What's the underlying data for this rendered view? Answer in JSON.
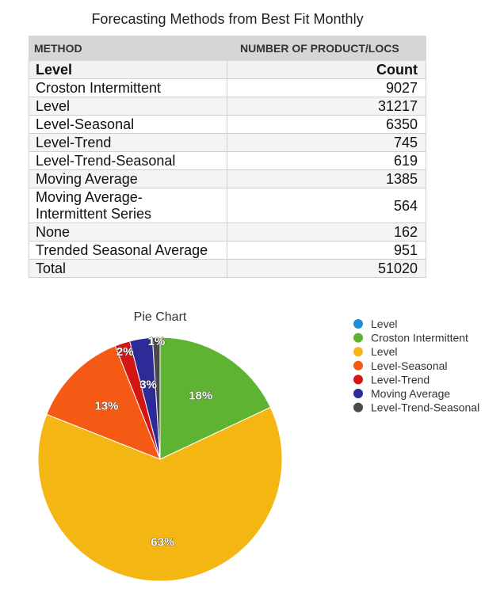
{
  "page": {
    "title": "Forecasting Methods from Best Fit Monthly"
  },
  "table": {
    "headers": [
      "METHOD",
      "NUMBER OF PRODUCT/LOCS"
    ],
    "subheader": [
      "Level",
      "Count"
    ],
    "rows": [
      [
        "Croston Intermittent",
        "9027"
      ],
      [
        "Level",
        "31217"
      ],
      [
        "Level-Seasonal",
        "6350"
      ],
      [
        "Level-Trend",
        "745"
      ],
      [
        "Level-Trend-Seasonal",
        "619"
      ],
      [
        "Moving Average",
        "1385"
      ],
      [
        "Moving Average-\nIntermittent Series",
        "564"
      ],
      [
        "None",
        "162"
      ],
      [
        "Trended Seasonal Average",
        "951"
      ],
      [
        "Total",
        "51020"
      ]
    ]
  },
  "chart_data": {
    "type": "pie",
    "title": "Pie Chart",
    "legend_position": "right",
    "slices": [
      {
        "name": "Level",
        "value": 0,
        "label": "",
        "color": "#1e8fd8"
      },
      {
        "name": "Croston Intermittent",
        "value": 18,
        "label": "18%",
        "color": "#5eb332"
      },
      {
        "name": "Level",
        "value": 63,
        "label": "63%",
        "color": "#f4b612"
      },
      {
        "name": "Level-Seasonal",
        "value": 13,
        "label": "13%",
        "color": "#f45a14"
      },
      {
        "name": "Level-Trend",
        "value": 2,
        "label": "2%",
        "color": "#d41612"
      },
      {
        "name": "Moving Average",
        "value": 3,
        "label": "3%",
        "color": "#2c2b98"
      },
      {
        "name": "Level-Trend-Seasonal",
        "value": 1,
        "label": "1%",
        "color": "#4a4a4a"
      }
    ]
  }
}
